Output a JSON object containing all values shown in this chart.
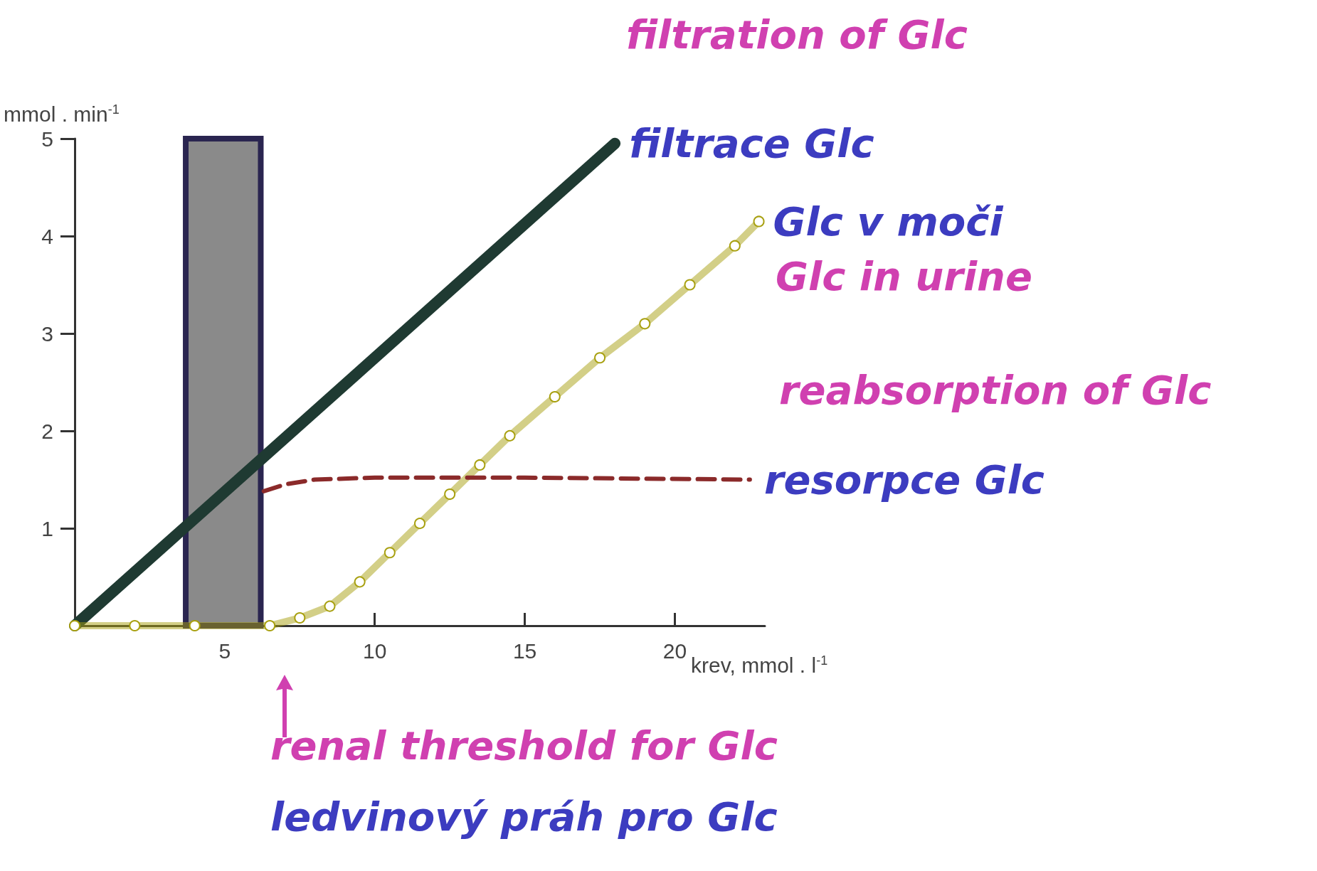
{
  "chart_data": {
    "type": "line",
    "xlabel": "krev, mmol . l$^{-1}$",
    "ylabel": "mmol . min$^{-1}$",
    "xlim": [
      0,
      23
    ],
    "xticks": [
      5,
      10,
      15,
      20
    ],
    "ylim": [
      0,
      5
    ],
    "yticks": [
      1,
      2,
      3,
      4,
      5
    ],
    "grid": false,
    "legend": false,
    "series": [
      {
        "name": "filtrace Glc",
        "color": "#1f3a32",
        "marker": "none",
        "line_style": "solid",
        "x": [
          0,
          18
        ],
        "values": [
          0,
          4.95
        ]
      },
      {
        "name": "Glc v moči",
        "color": "#a8a010",
        "marker": "circle",
        "line_style": "solid",
        "x": [
          0,
          2,
          4,
          6.5,
          7.5,
          8.5,
          9.5,
          10.5,
          11.5,
          12.5,
          13.5,
          14.5,
          16,
          17.5,
          19,
          20.5,
          22,
          22.8
        ],
        "values": [
          0,
          0,
          0,
          0,
          0.08,
          0.2,
          0.45,
          0.75,
          1.05,
          1.35,
          1.65,
          1.95,
          2.35,
          2.75,
          3.1,
          3.5,
          3.9,
          4.15
        ]
      },
      {
        "name": "resorpce Glc",
        "color": "#8b2a2a",
        "marker": "none",
        "line_style": "dashed",
        "x": [
          6.3,
          7,
          8,
          10,
          15,
          22.5
        ],
        "values": [
          1.38,
          1.45,
          1.5,
          1.52,
          1.52,
          1.5
        ]
      }
    ],
    "bands": [
      {
        "axis": "x",
        "from": 3.7,
        "to": 6.2,
        "color": "#8a8a8a"
      }
    ],
    "annotations": [
      "filtration of Glc",
      "Glc in urine",
      "reabsorption of Glc",
      "renal threshold for Glc",
      "ledvinový práh pro Glc"
    ]
  }
}
